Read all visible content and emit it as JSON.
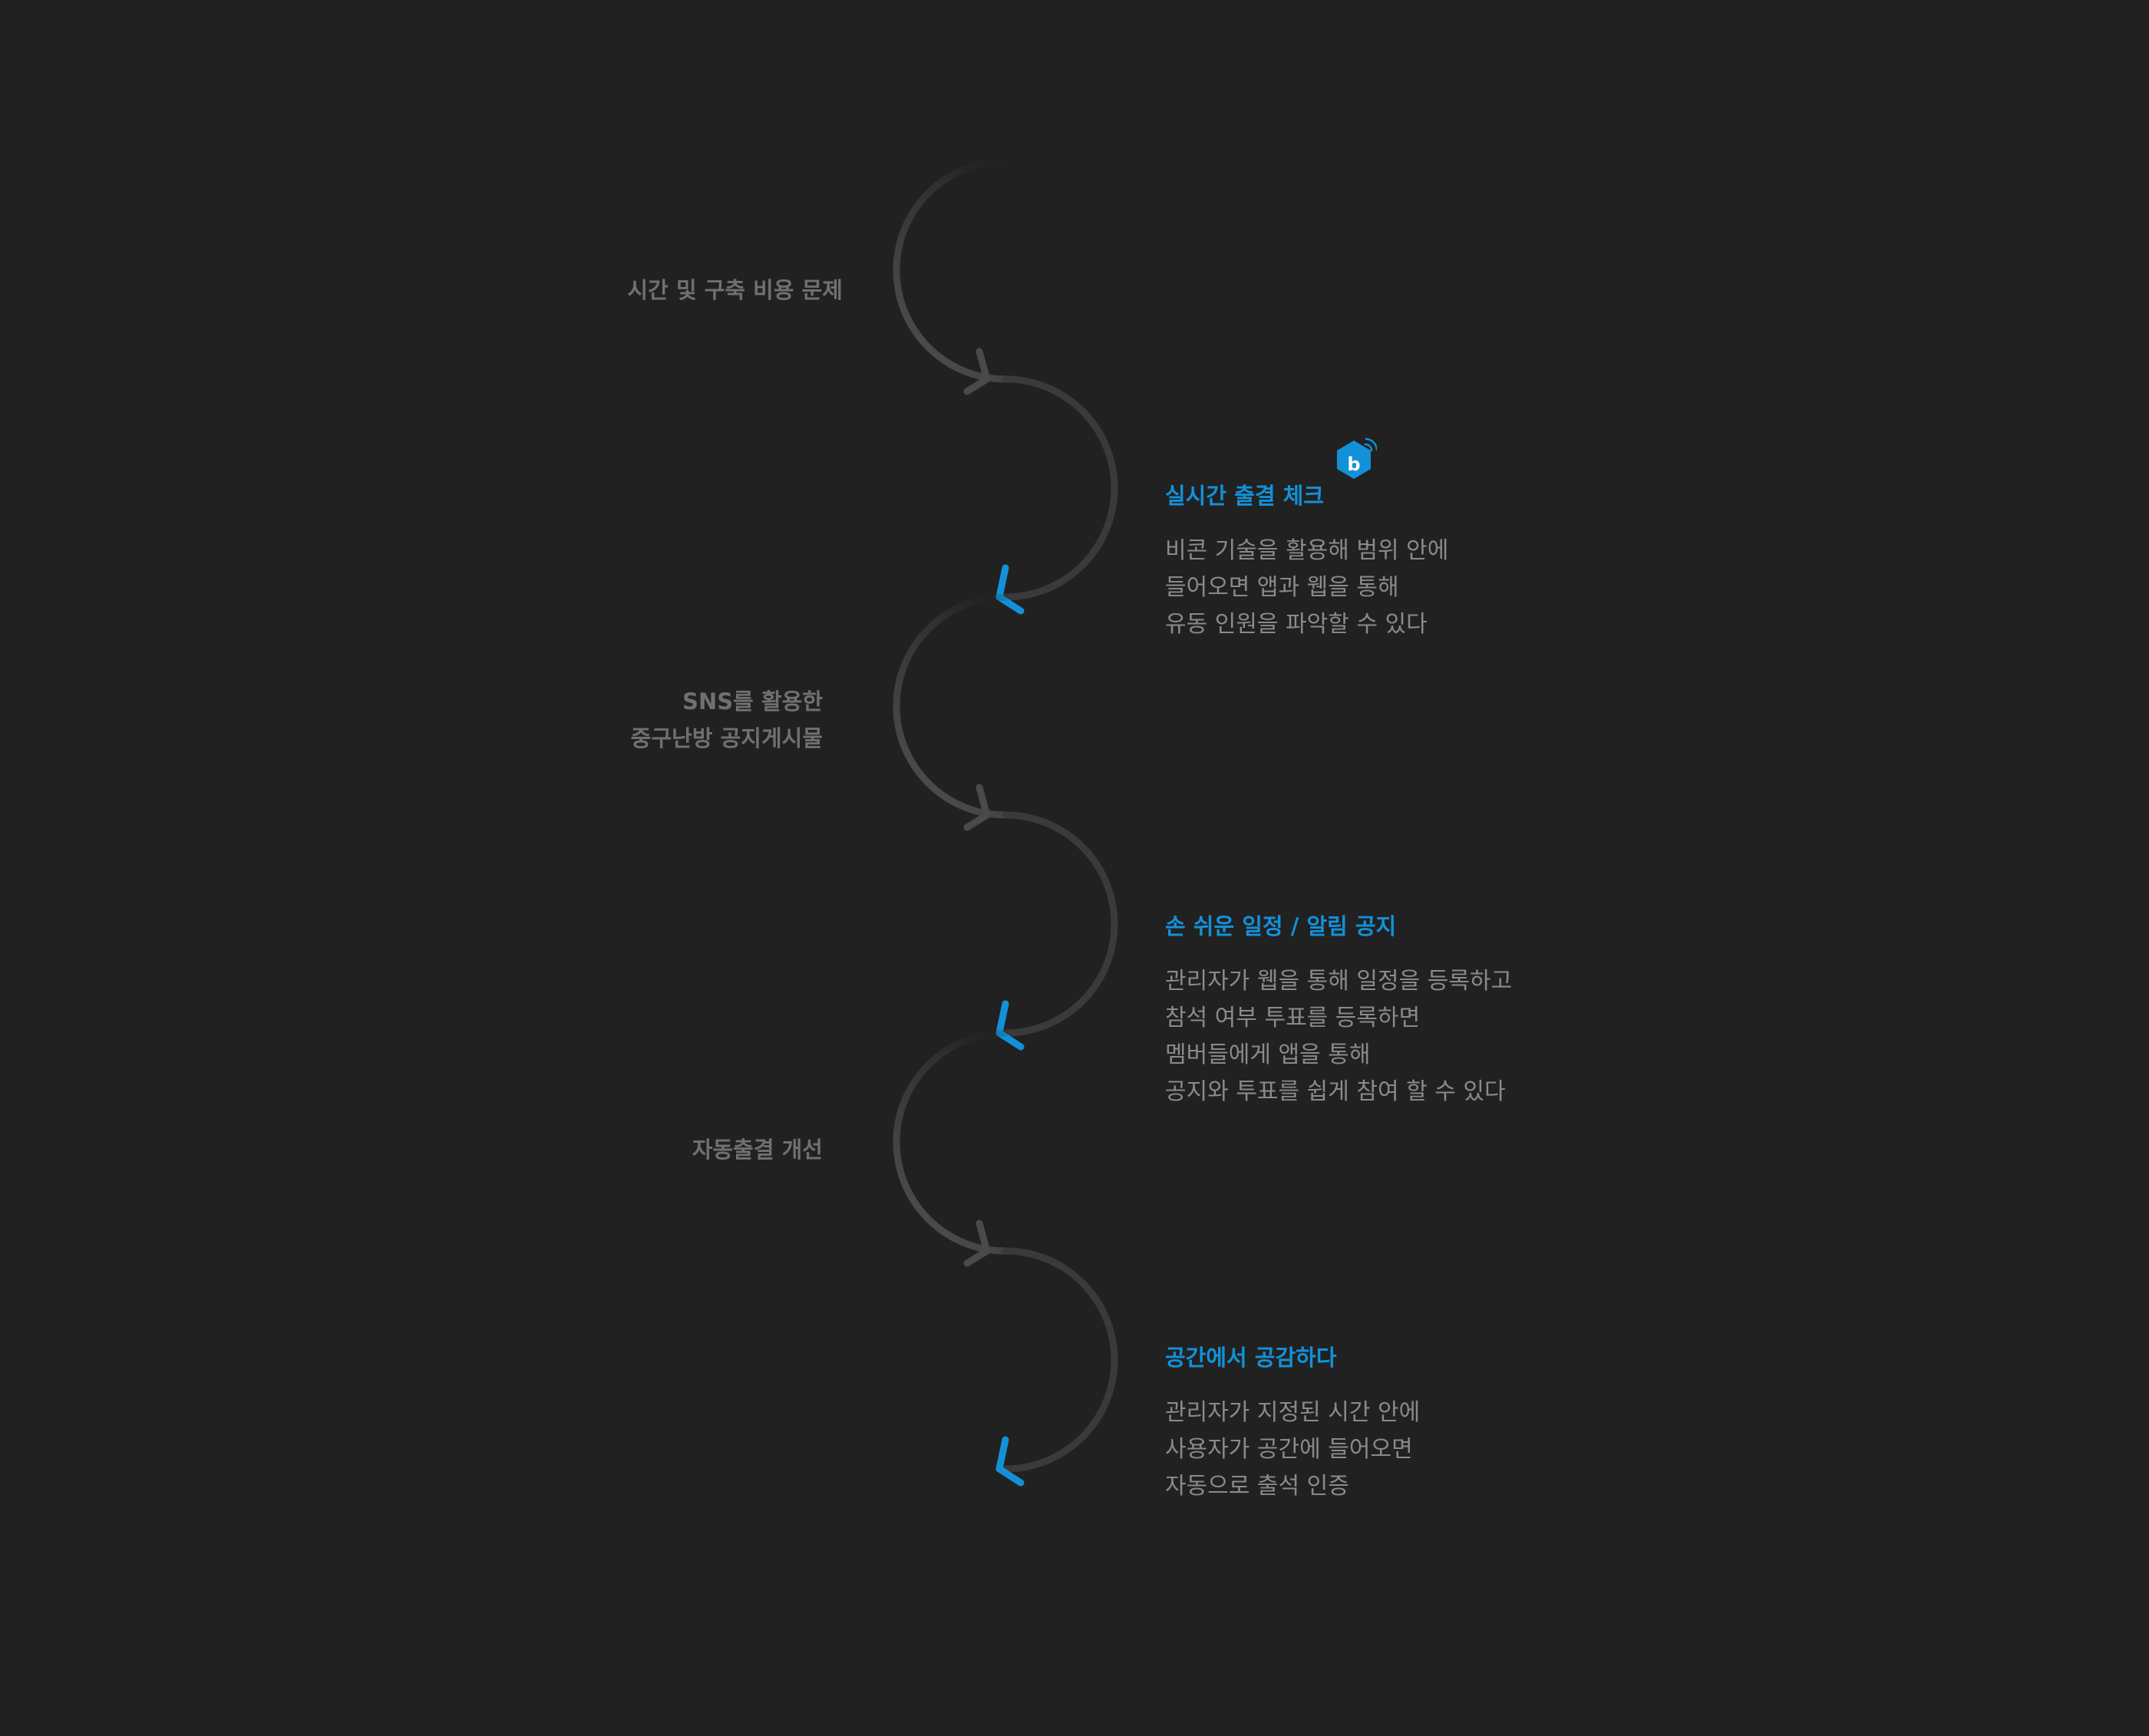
{
  "colors": {
    "background": "#212121",
    "accent": "#1291d9",
    "muted_arrow": "#4a4a4a",
    "problem_text": "#707070",
    "body_text": "#8a8a8a"
  },
  "problems": [
    {
      "lines": [
        "시간 및 구축 비용 문제"
      ]
    },
    {
      "lines": [
        "SNS를 활용한",
        "중구난방 공지게시물"
      ]
    },
    {
      "lines": [
        "자동출결 개선"
      ]
    }
  ],
  "solutions": [
    {
      "title": "실시간 출결 체크",
      "icon": "beacon-icon",
      "lines": [
        "비콘 기술을 활용해 범위 안에",
        "들어오면 앱과 웹을 통해",
        "유동 인원을 파악할 수 있다"
      ]
    },
    {
      "title": "손 쉬운 일정 / 알림 공지",
      "lines": [
        "관리자가 웹을 통해 일정을 등록하고",
        "참석 여부 투표를 등록하면",
        "멤버들에게 앱을 통해",
        "공지와 투표를 쉽게 참여 할 수 있다"
      ]
    },
    {
      "title": "공간에서 공감하다",
      "lines": [
        "관리자가 지정된 시간 안에",
        "사용자가 공간에 들어오면",
        "자동으로 출석 인증"
      ]
    }
  ]
}
